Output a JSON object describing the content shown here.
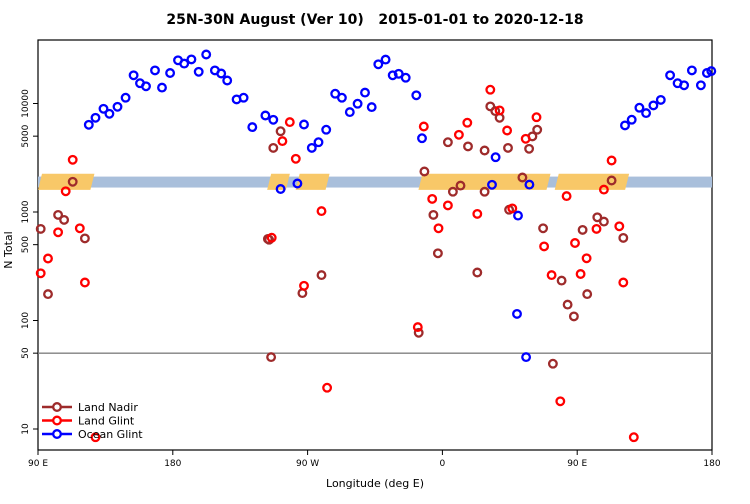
{
  "title": "25N-30N August (Ver 10)   2015-01-01 to 2020-12-18",
  "chart_data": {
    "type": "scatter",
    "title": "25N-30N August (Ver 10)   2015-01-01 to 2020-12-18",
    "xlabel": "Longitude (deg E)",
    "ylabel": "N Total",
    "x_axis": {
      "scale": "linear",
      "range": [
        90,
        540
      ],
      "ticks": [
        {
          "pos": 90,
          "label": "90 E"
        },
        {
          "pos": 180,
          "label": "180"
        },
        {
          "pos": 270,
          "label": "90 W"
        },
        {
          "pos": 360,
          "label": "0"
        },
        {
          "pos": 450,
          "label": "90 E"
        },
        {
          "pos": 540,
          "label": "180"
        }
      ]
    },
    "y_axis": {
      "scale": "log",
      "range": [
        6.3,
        38000
      ],
      "ticks": [
        {
          "v": 10,
          "label": "10"
        },
        {
          "v": 50,
          "label": "50"
        },
        {
          "v": 100,
          "label": "100"
        },
        {
          "v": 500,
          "label": "500"
        },
        {
          "v": 1000,
          "label": "1000"
        },
        {
          "v": 5000,
          "label": "5000"
        },
        {
          "v": 10000,
          "label": "10000"
        }
      ]
    },
    "reference_line": {
      "y": 50,
      "color": "#808080"
    },
    "bands": {
      "blue_band": {
        "x_range": [
          90,
          540
        ],
        "y_range": [
          1680,
          2120
        ],
        "color": "#A9BFDB"
      },
      "orange_color": "#F8C868",
      "orange_segments": [
        [
          90,
          125
        ],
        [
          243,
          255.5
        ],
        [
          262,
          282
        ],
        [
          344,
          429.5
        ],
        [
          435,
          482
        ]
      ],
      "orange_y_range": [
        1600,
        2250
      ]
    },
    "legend_position": "bottomleft",
    "series": [
      {
        "name": "Land Nadir",
        "color": "#9E2B2B",
        "points": [
          [
            113.2,
            1900
          ],
          [
            103.4,
            940
          ],
          [
            107.4,
            845
          ],
          [
            91.8,
            698
          ],
          [
            121.3,
            571
          ],
          [
            96.7,
            175
          ],
          [
            243.5,
            565
          ],
          [
            244.3,
            556
          ],
          [
            252.0,
            5560
          ],
          [
            247.1,
            3900
          ],
          [
            392.0,
            9400
          ],
          [
            395.3,
            8510
          ],
          [
            363.7,
            4400
          ],
          [
            377.1,
            4020
          ],
          [
            388.2,
            3690
          ],
          [
            348.0,
            2360
          ],
          [
            266.5,
            179
          ],
          [
            279.3,
            262
          ],
          [
            354.0,
            940
          ],
          [
            357.0,
            416
          ],
          [
            367.0,
            1540
          ],
          [
            372.1,
            1750
          ],
          [
            388.2,
            1540
          ],
          [
            383.3,
            277
          ],
          [
            398.2,
            7380
          ],
          [
            423.3,
            5730
          ],
          [
            420.1,
            4970
          ],
          [
            403.8,
            3900
          ],
          [
            417.9,
            3820
          ],
          [
            413.4,
            2080
          ],
          [
            473.0,
            1950
          ],
          [
            404.5,
            1050
          ],
          [
            463.4,
            893
          ],
          [
            467.8,
            815
          ],
          [
            427.2,
            707
          ],
          [
            453.6,
            684
          ],
          [
            480.8,
            577
          ],
          [
            439.6,
            233
          ],
          [
            456.7,
            175
          ],
          [
            443.6,
            140
          ],
          [
            447.8,
            109
          ],
          [
            245.6,
            46
          ],
          [
            433.8,
            40
          ],
          [
            344.2,
            77
          ]
        ]
      },
      {
        "name": "Land Glint",
        "color": "#FF0000",
        "points": [
          [
            113.2,
            3030
          ],
          [
            108.5,
            1550
          ],
          [
            103.4,
            650
          ],
          [
            117.9,
            707
          ],
          [
            96.7,
            373
          ],
          [
            91.8,
            272
          ],
          [
            121.3,
            224
          ],
          [
            128.4,
            8.4
          ],
          [
            258.1,
            6740
          ],
          [
            253.2,
            4500
          ],
          [
            262.1,
            3090
          ],
          [
            246.0,
            580
          ],
          [
            279.3,
            1020
          ],
          [
            267.6,
            209
          ],
          [
            343.6,
            87
          ],
          [
            347.6,
            6140
          ],
          [
            353.2,
            1320
          ],
          [
            363.7,
            1150
          ],
          [
            357.4,
            707
          ],
          [
            371.0,
            5150
          ],
          [
            376.6,
            6650
          ],
          [
            383.3,
            960
          ],
          [
            392.0,
            13400
          ],
          [
            398.2,
            8630
          ],
          [
            422.8,
            7480
          ],
          [
            403.2,
            5640
          ],
          [
            415.6,
            4730
          ],
          [
            473.0,
            2980
          ],
          [
            406.7,
            1080
          ],
          [
            442.9,
            1400
          ],
          [
            467.8,
            1610
          ],
          [
            462.9,
            698
          ],
          [
            478.1,
            738
          ],
          [
            427.9,
            482
          ],
          [
            448.5,
            518
          ],
          [
            456.3,
            374
          ],
          [
            432.9,
            262
          ],
          [
            452.3,
            268
          ],
          [
            480.8,
            224
          ],
          [
            283.0,
            24
          ],
          [
            438.7,
            18
          ],
          [
            487.8,
            8.4
          ]
        ]
      },
      {
        "name": "Ocean Glint",
        "color": "#0000FF",
        "points": [
          [
            123.9,
            6370
          ],
          [
            128.4,
            7380
          ],
          [
            133.7,
            8940
          ],
          [
            137.7,
            8040
          ],
          [
            143.1,
            9330
          ],
          [
            148.5,
            11300
          ],
          [
            153.8,
            18200
          ],
          [
            158.1,
            15400
          ],
          [
            162.1,
            14400
          ],
          [
            168.1,
            20200
          ],
          [
            172.8,
            14000
          ],
          [
            178.2,
            19100
          ],
          [
            183.5,
            25000
          ],
          [
            187.6,
            23300
          ],
          [
            192.4,
            25500
          ],
          [
            197.3,
            19600
          ],
          [
            202.3,
            28300
          ],
          [
            208.1,
            20200
          ],
          [
            212.3,
            18900
          ],
          [
            216.3,
            16300
          ],
          [
            222.6,
            10900
          ],
          [
            227.3,
            11300
          ],
          [
            233.1,
            6060
          ],
          [
            241.8,
            7760
          ],
          [
            247.1,
            7080
          ],
          [
            267.6,
            6410
          ],
          [
            272.8,
            3900
          ],
          [
            277.3,
            4400
          ],
          [
            282.4,
            5730
          ],
          [
            288.4,
            12300
          ],
          [
            292.9,
            11300
          ],
          [
            298.2,
            8330
          ],
          [
            303.4,
            9950
          ],
          [
            308.3,
            12600
          ],
          [
            312.8,
            9270
          ],
          [
            317.2,
            23000
          ],
          [
            322.1,
            25400
          ],
          [
            326.8,
            18200
          ],
          [
            330.8,
            18800
          ],
          [
            335.5,
            17300
          ],
          [
            342.6,
            11900
          ],
          [
            346.4,
            4790
          ],
          [
            395.5,
            3200
          ],
          [
            481.9,
            6280
          ],
          [
            486.4,
            7090
          ],
          [
            491.5,
            9140
          ],
          [
            496.0,
            8150
          ],
          [
            500.9,
            9600
          ],
          [
            505.8,
            10800
          ],
          [
            512.0,
            18200
          ],
          [
            517.0,
            15400
          ],
          [
            521.4,
            14700
          ],
          [
            526.6,
            20200
          ],
          [
            532.6,
            14700
          ],
          [
            536.6,
            19100
          ],
          [
            539.5,
            19900
          ],
          [
            252.0,
            1630
          ],
          [
            263.2,
            1830
          ],
          [
            393.1,
            1780
          ],
          [
            418.1,
            1790
          ],
          [
            410.5,
            926
          ],
          [
            409.8,
            115
          ],
          [
            415.9,
            46
          ]
        ]
      }
    ]
  }
}
